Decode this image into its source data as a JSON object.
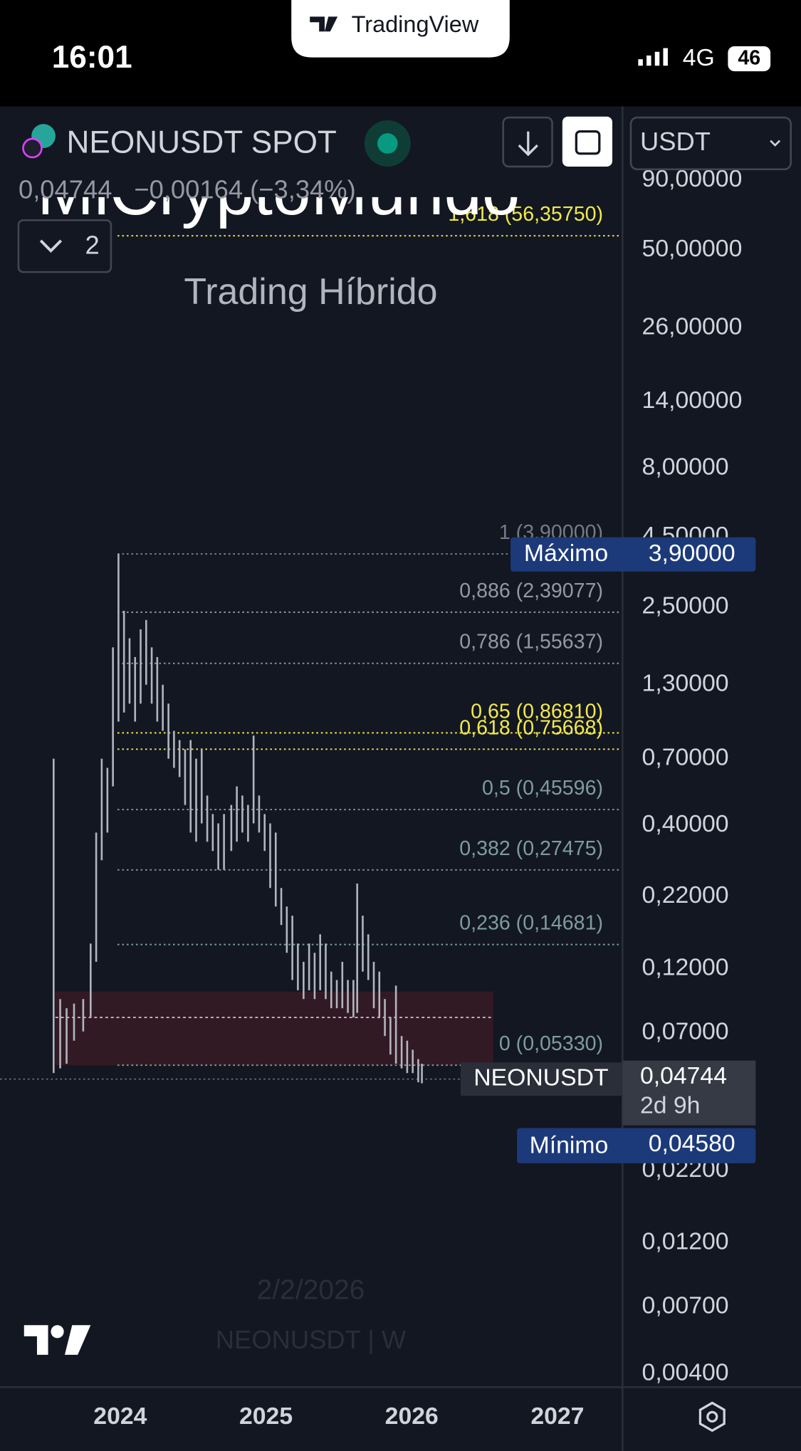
{
  "status_bar": {
    "time": "16:01",
    "network": "4G",
    "battery": "46",
    "app_pill": "TradingView"
  },
  "header": {
    "symbol": "NEONUSDT SPOT",
    "last": "0,04744",
    "change": "−0,00164 (−3,34%)",
    "indicators_count": "2",
    "currency": "USDT"
  },
  "watermark": {
    "title": "MiCryptoMundo",
    "subtitle": "Trading Híbrido",
    "date": "2/2/2026",
    "symbol": "NEONUSDT | W"
  },
  "chart_data": {
    "type": "ohlc",
    "log_scale": true,
    "grid": false,
    "xlim": [
      2023.175,
      2027.44
    ],
    "xticks": [
      2024,
      2025,
      2026,
      2027
    ],
    "ylim": [
      0.0036,
      167
    ],
    "yticks": [
      {
        "value": 90,
        "label": "90,00000"
      },
      {
        "value": 50,
        "label": "50,00000"
      },
      {
        "value": 26,
        "label": "26,00000"
      },
      {
        "value": 14,
        "label": "14,00000"
      },
      {
        "value": 8,
        "label": "8,00000"
      },
      {
        "value": 4.5,
        "label": "4,50000"
      },
      {
        "value": 2.5,
        "label": "2,50000"
      },
      {
        "value": 1.3,
        "label": "1,30000"
      },
      {
        "value": 0.7,
        "label": "0,70000"
      },
      {
        "value": 0.4,
        "label": "0,40000"
      },
      {
        "value": 0.22,
        "label": "0,22000"
      },
      {
        "value": 0.12,
        "label": "0,12000"
      },
      {
        "value": 0.07,
        "label": "0,07000"
      },
      {
        "value": 0.022,
        "label": "0,02200"
      },
      {
        "value": 0.012,
        "label": "0,01200"
      },
      {
        "value": 0.007,
        "label": "0,00700"
      },
      {
        "value": 0.004,
        "label": "0,00400"
      }
    ],
    "color": "#b2b5be",
    "x": [
      2023.543,
      2023.588,
      2023.632,
      2023.683,
      2023.746,
      2023.797,
      2023.835,
      2023.873,
      2023.912,
      2023.95,
      2023.988,
      2024.026,
      2024.064,
      2024.102,
      2024.14,
      2024.178,
      2024.216,
      2024.254,
      2024.292,
      2024.331,
      2024.369,
      2024.407,
      2024.445,
      2024.483,
      2024.521,
      2024.559,
      2024.597,
      2024.635,
      2024.673,
      2024.712,
      2024.762,
      2024.8,
      2024.838,
      2024.877,
      2024.915,
      2024.953,
      2024.991,
      2025.029,
      2025.067,
      2025.105,
      2025.143,
      2025.181,
      2025.219,
      2025.258,
      2025.296,
      2025.334,
      2025.372,
      2025.41,
      2025.448,
      2025.486,
      2025.524,
      2025.562,
      2025.6,
      2025.626,
      2025.664,
      2025.702,
      2025.74,
      2025.778,
      2025.816,
      2025.854,
      2025.892,
      2025.931,
      2025.969,
      2026.007,
      2026.045,
      2026.07
    ],
    "high": [
      0.699,
      0.0929,
      0.086,
      0.0894,
      0.0929,
      0.148,
      0.376,
      0.699,
      0.647,
      1.78,
      3.9,
      2.42,
      1.92,
      1.64,
      2.07,
      2.24,
      1.78,
      1.64,
      1.3,
      1.11,
      0.883,
      0.817,
      0.756,
      0.817,
      0.699,
      0.756,
      0.513,
      0.439,
      0.406,
      0.439,
      0.474,
      0.554,
      0.513,
      0.474,
      0.849,
      0.513,
      0.439,
      0.406,
      0.376,
      0.236,
      0.202,
      0.187,
      0.148,
      0.127,
      0.148,
      0.137,
      0.16,
      0.148,
      0.117,
      0.109,
      0.127,
      0.109,
      0.109,
      0.245,
      0.187,
      0.16,
      0.127,
      0.117,
      0.0929,
      0.0796,
      0.104,
      0.0681,
      0.0655,
      0.0607,
      0.0561,
      0.054
    ],
    "low": [
      0.0499,
      0.0519,
      0.054,
      0.0655,
      0.0708,
      0.0796,
      0.127,
      0.298,
      0.376,
      0.554,
      0.954,
      1.03,
      1.11,
      0.954,
      1.11,
      1.3,
      1.11,
      0.954,
      0.883,
      0.699,
      0.647,
      0.599,
      0.474,
      0.376,
      0.348,
      0.406,
      0.348,
      0.322,
      0.275,
      0.275,
      0.322,
      0.348,
      0.376,
      0.348,
      0.406,
      0.376,
      0.322,
      0.236,
      0.202,
      0.173,
      0.137,
      0.109,
      0.1,
      0.0929,
      0.1,
      0.0929,
      0.1,
      0.0929,
      0.086,
      0.086,
      0.086,
      0.0827,
      0.0796,
      0.0827,
      0.117,
      0.109,
      0.086,
      0.0796,
      0.0681,
      0.0583,
      0.054,
      0.0519,
      0.0499,
      0.0499,
      0.0462,
      0.0458
    ],
    "fib_levels": [
      {
        "label": "1,618 (56,35750)",
        "value": 56.3575,
        "color": "#f2e94e"
      },
      {
        "label": "1 (3,90000)",
        "value": 3.9,
        "color": "#787b86"
      },
      {
        "label": "0,886 (2,39077)",
        "value": 2.39077,
        "color": "#9598a1"
      },
      {
        "label": "0,786 (1,55637)",
        "value": 1.55637,
        "color": "#9598a1"
      },
      {
        "label": "0,65 (0,86810)",
        "value": 0.8681,
        "color": "#f2e94e"
      },
      {
        "label": "0,618 (0,75668)",
        "value": 0.75668,
        "color": "#f2e94e"
      },
      {
        "label": "0,5 (0,45596)",
        "value": 0.45596,
        "color": "#7e9c9c"
      },
      {
        "label": "0,382 (0,27475)",
        "value": 0.27475,
        "color": "#7e9c9c"
      },
      {
        "label": "0,236 (0,14681)",
        "value": 0.14681,
        "color": "#7e9c9c"
      },
      {
        "label": "0 (0,05330)",
        "value": 0.0533,
        "color": "#7e9c9c"
      }
    ],
    "zone": {
      "x_start": 2023.555,
      "x_end": 2026.559,
      "high": 0.0989,
      "mid": 0.0796,
      "low": 0.0533,
      "color": "#3b1b27"
    },
    "max_marker": {
      "name": "Máximo",
      "value": 3.9,
      "value_label": "3,90000"
    },
    "current_marker": {
      "name": "NEONUSDT",
      "value": 0.04744,
      "value_label": "0,04744",
      "countdown": "2d 9h"
    },
    "min_marker": {
      "name": "Mínimo",
      "value": 0.0458,
      "value_label": "0,04580"
    }
  }
}
